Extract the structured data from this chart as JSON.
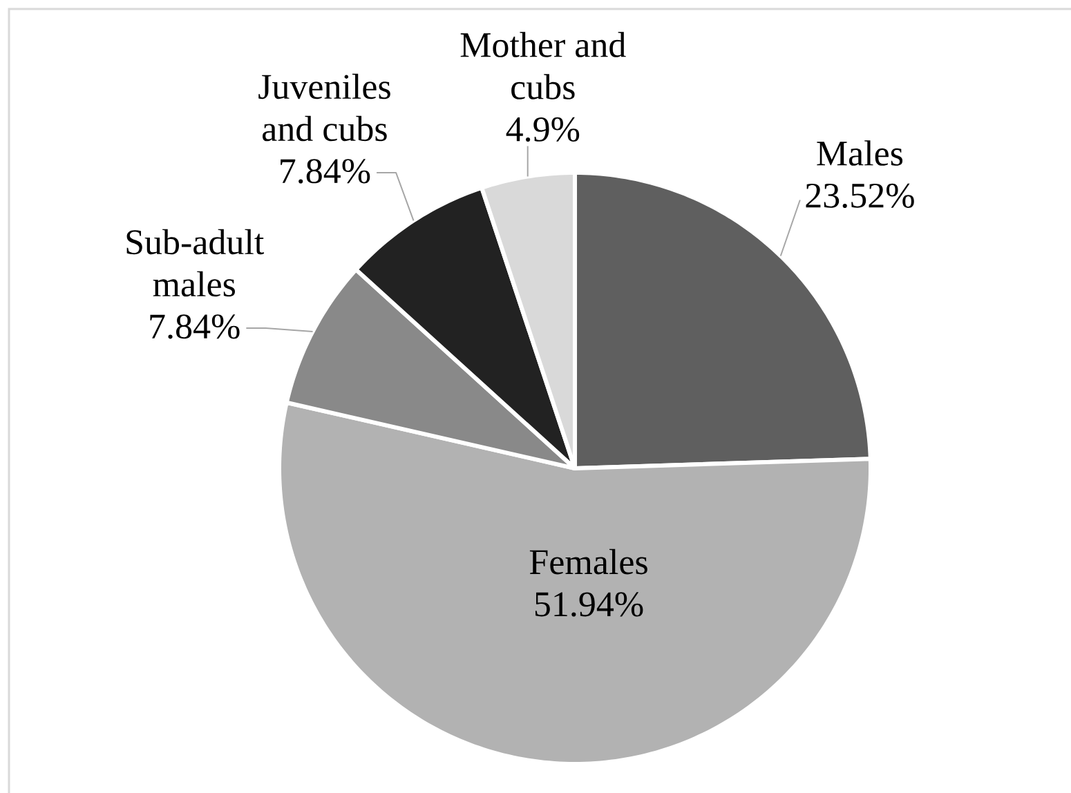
{
  "chart_data": {
    "type": "pie",
    "categories": [
      "Males",
      "Females",
      "Sub-adult males",
      "Juveniles and cubs",
      "Mother and cubs"
    ],
    "values": [
      23.52,
      51.94,
      7.84,
      7.84,
      4.9
    ],
    "value_labels": [
      "23.52%",
      "51.94%",
      "7.84%",
      "7.84%",
      "4.9%"
    ],
    "colors": [
      "#5f5f5f",
      "#b2b2b2",
      "#898989",
      "#222222",
      "#d9d9d9"
    ]
  }
}
